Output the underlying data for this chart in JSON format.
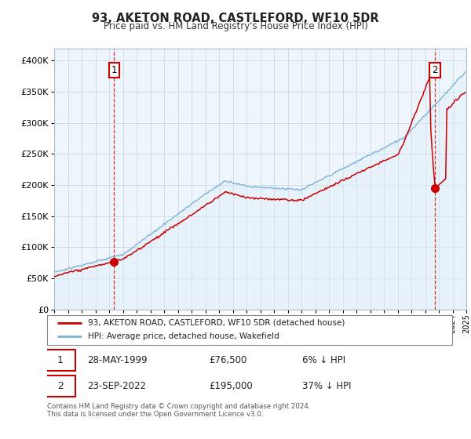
{
  "title": "93, AKETON ROAD, CASTLEFORD, WF10 5DR",
  "subtitle": "Price paid vs. HM Land Registry's House Price Index (HPI)",
  "legend_line1": "93, AKETON ROAD, CASTLEFORD, WF10 5DR (detached house)",
  "legend_line2": "HPI: Average price, detached house, Wakefield",
  "annotation1_date": "28-MAY-1999",
  "annotation1_price": 76500,
  "annotation1_pct": "6% ↓ HPI",
  "annotation2_date": "23-SEP-2022",
  "annotation2_price": 195000,
  "annotation2_pct": "37% ↓ HPI",
  "footer": "Contains HM Land Registry data © Crown copyright and database right 2024.\nThis data is licensed under the Open Government Licence v3.0.",
  "property_color": "#cc0000",
  "hpi_color": "#7fb3d9",
  "hpi_fill_color": "#dceef8",
  "ylim": [
    0,
    420000
  ],
  "yticks": [
    0,
    50000,
    100000,
    150000,
    200000,
    250000,
    300000,
    350000,
    400000
  ],
  "grid_color": "#ccddee",
  "sale1_year": 1999.37,
  "sale2_year": 2022.72
}
